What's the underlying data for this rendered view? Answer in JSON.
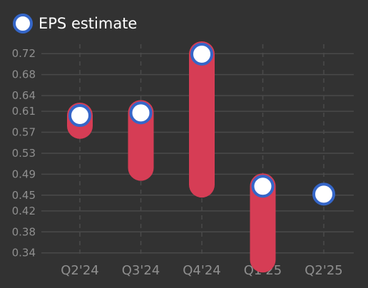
{
  "chart_data": {
    "type": "range-dot",
    "legend": {
      "label": "EPS estimate",
      "position": "top-left"
    },
    "categories": [
      "Q2'24",
      "Q3'24",
      "Q4'24",
      "Q1'25",
      "Q2'25"
    ],
    "y_ticks": [
      "0.34",
      "0.38",
      "0.42",
      "0.45",
      "0.49",
      "0.53",
      "0.57",
      "0.61",
      "0.64",
      "0.68",
      "0.72"
    ],
    "ylim": [
      0.326,
      0.738
    ],
    "grid": {
      "horizontal": "solid",
      "vertical": "dashed"
    },
    "series": [
      {
        "name": "EPS estimate",
        "type": "dot",
        "values": [
          0.602,
          0.607,
          0.719,
          0.467,
          0.452
        ]
      },
      {
        "type": "range-bar",
        "low": [
          0.582,
          0.502,
          0.47,
          0.327,
          null
        ],
        "high": [
          0.602,
          0.607,
          0.719,
          0.467,
          null
        ]
      }
    ],
    "colors": {
      "background": "#323232",
      "bar": "#d63d55",
      "marker_fill": "#ffffff",
      "marker_stroke": "#3566c8",
      "grid": "#4a4a4a",
      "tick_label": "#8f8f8f",
      "legend_text": "#ffffff"
    }
  }
}
